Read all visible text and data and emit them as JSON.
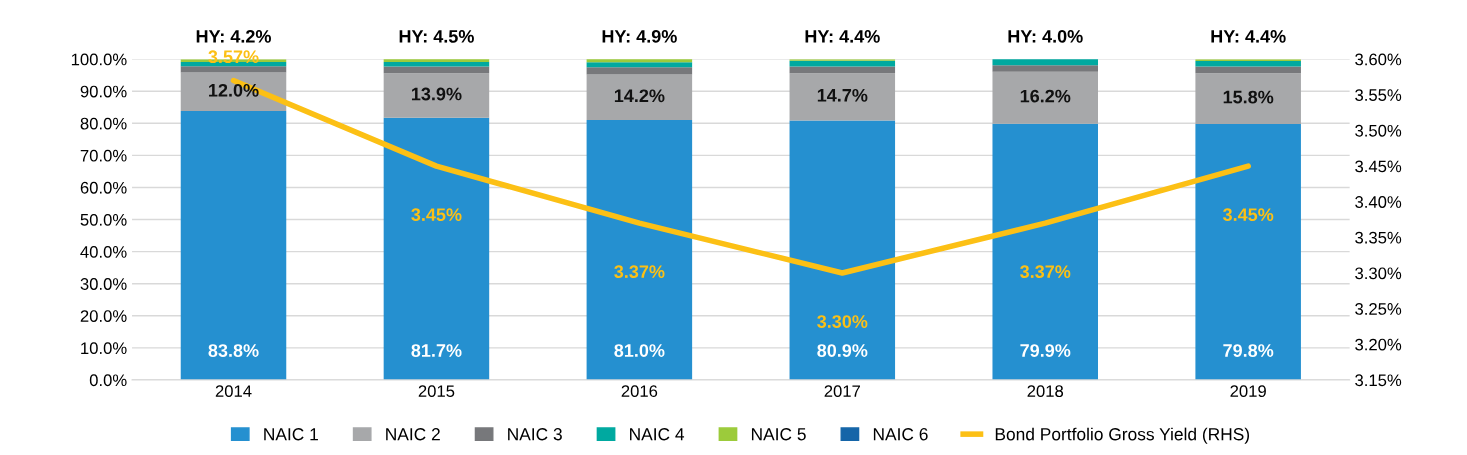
{
  "chart_data": {
    "type": "bar",
    "stacked": true,
    "categories": [
      "2014",
      "2015",
      "2016",
      "2017",
      "2018",
      "2019"
    ],
    "series": [
      {
        "name": "NAIC 1",
        "color": "#2590d0",
        "values": [
          83.8,
          81.7,
          81.0,
          80.9,
          79.9,
          79.8
        ],
        "value_labels": [
          "83.8%",
          "81.7%",
          "81.0%",
          "80.9%",
          "79.9%",
          "79.8%"
        ]
      },
      {
        "name": "NAIC 2",
        "color": "#a7a8aa",
        "values": [
          12.0,
          13.9,
          14.2,
          14.7,
          16.2,
          15.8
        ],
        "value_labels": [
          "12.0%",
          "13.9%",
          "14.2%",
          "14.7%",
          "16.2%",
          "15.8%"
        ]
      },
      {
        "name": "NAIC 3",
        "color": "#77787b",
        "values": [
          2.0,
          2.1,
          2.3,
          2.1,
          2.0,
          2.1
        ]
      },
      {
        "name": "NAIC 4",
        "color": "#00a9a0",
        "values": [
          1.3,
          1.4,
          1.5,
          1.8,
          2.0,
          1.7
        ]
      },
      {
        "name": "NAIC 5",
        "color": "#9ccb3b",
        "values": [
          0.9,
          1.0,
          1.1,
          0.5,
          0.0,
          0.6
        ]
      },
      {
        "name": "NAIC 6",
        "color": "#1565a8",
        "values": [
          0.0,
          0.0,
          0.0,
          0.0,
          0.0,
          0.0
        ]
      },
      {
        "name": "Bond Portfolio Gross Yield (RHS)",
        "type": "line",
        "axis": "y2",
        "color": "#fcc015",
        "values": [
          3.57,
          3.45,
          3.37,
          3.3,
          3.37,
          3.45
        ],
        "value_labels": [
          "3.57%",
          "3.45%",
          "3.37%",
          "3.30%",
          "3.37%",
          "3.45%"
        ]
      }
    ],
    "ylim": [
      0,
      100
    ],
    "yticks": [
      {
        "value": 0,
        "label": "0.0%"
      },
      {
        "value": 10,
        "label": "10.0%"
      },
      {
        "value": 20,
        "label": "20.0%"
      },
      {
        "value": 30,
        "label": "30.0%"
      },
      {
        "value": 40,
        "label": "40.0%"
      },
      {
        "value": 50,
        "label": "50.0%"
      },
      {
        "value": 60,
        "label": "60.0%"
      },
      {
        "value": 70,
        "label": "70.0%"
      },
      {
        "value": 80,
        "label": "80.0%"
      },
      {
        "value": 90,
        "label": "90.0%"
      },
      {
        "value": 100,
        "label": "100.0%"
      }
    ],
    "y2lim": [
      3.15,
      3.6
    ],
    "y2ticks": [
      {
        "value": 3.15,
        "label": "3.15%"
      },
      {
        "value": 3.2,
        "label": "3.20%"
      },
      {
        "value": 3.25,
        "label": "3.25%"
      },
      {
        "value": 3.3,
        "label": "3.30%"
      },
      {
        "value": 3.35,
        "label": "3.35%"
      },
      {
        "value": 3.4,
        "label": "3.40%"
      },
      {
        "value": 3.45,
        "label": "3.45%"
      },
      {
        "value": 3.5,
        "label": "3.50%"
      },
      {
        "value": 3.55,
        "label": "3.55%"
      },
      {
        "value": 3.6,
        "label": "3.60%"
      }
    ],
    "annotations": [
      "HY: 4.2%",
      "HY: 4.5%",
      "HY: 4.9%",
      "HY: 4.4%",
      "HY: 4.0%",
      "HY: 4.4%"
    ],
    "grid": "y",
    "legend": "bottom"
  }
}
